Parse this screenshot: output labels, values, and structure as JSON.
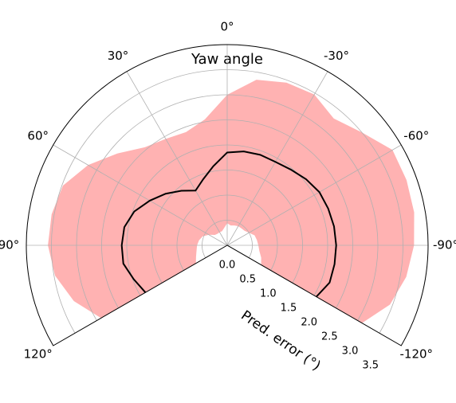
{
  "chart_data": {
    "type": "polar",
    "title": "Yaw angle",
    "radial_axis_label": "Pred. error (°)",
    "theta": [
      -120,
      -110,
      -100,
      -90,
      -80,
      -70,
      -60,
      -50,
      -40,
      -30,
      -20,
      -10,
      0,
      10,
      20,
      30,
      40,
      50,
      60,
      70,
      80,
      90,
      100,
      110,
      120
    ],
    "line": {
      "color": "#000000",
      "values": [
        2.05,
        2.17,
        2.17,
        2.17,
        2.16,
        2.14,
        2.12,
        2.05,
        1.97,
        1.92,
        1.92,
        1.9,
        1.85,
        1.6,
        1.4,
        1.26,
        1.42,
        1.6,
        1.78,
        1.97,
        2.08,
        2.1,
        2.1,
        1.98,
        1.88
      ]
    },
    "band": {
      "color": "#ff0000",
      "alpha": 0.3,
      "upper": [
        3.1,
        3.45,
        3.62,
        3.72,
        3.78,
        3.8,
        3.8,
        3.5,
        3.3,
        3.47,
        3.45,
        3.35,
        3.0,
        2.55,
        2.4,
        2.45,
        2.55,
        2.85,
        3.2,
        3.48,
        3.55,
        3.57,
        3.48,
        3.25,
        2.9
      ],
      "lower": [
        0.78,
        0.72,
        0.65,
        0.62,
        0.6,
        0.58,
        0.5,
        0.45,
        0.44,
        0.44,
        0.42,
        0.4,
        0.44,
        0.35,
        0.3,
        0.3,
        0.3,
        0.32,
        0.42,
        0.52,
        0.57,
        0.6,
        0.62,
        0.66,
        0.72
      ]
    },
    "thetalim": [
      -120,
      120
    ],
    "thetaticks": [
      {
        "value": 0,
        "label": "0°"
      },
      {
        "value": 30,
        "label": "30°"
      },
      {
        "value": 60,
        "label": "60°"
      },
      {
        "value": 90,
        "label": "90°"
      },
      {
        "value": 120,
        "label": "120°"
      },
      {
        "value": -30,
        "label": "-30°"
      },
      {
        "value": -60,
        "label": "-60°"
      },
      {
        "value": -90,
        "label": "-90°"
      },
      {
        "value": -120,
        "label": "-120°"
      }
    ],
    "rlim": [
      0,
      4
    ],
    "rticks": [
      {
        "value": 0,
        "label": "0.0"
      },
      0.5,
      {
        "value": 1,
        "label": "1.0"
      },
      1.5,
      {
        "value": 2,
        "label": "2.0"
      },
      2.5,
      {
        "value": 3,
        "label": "3.0"
      },
      3.5
    ],
    "grid": true
  }
}
